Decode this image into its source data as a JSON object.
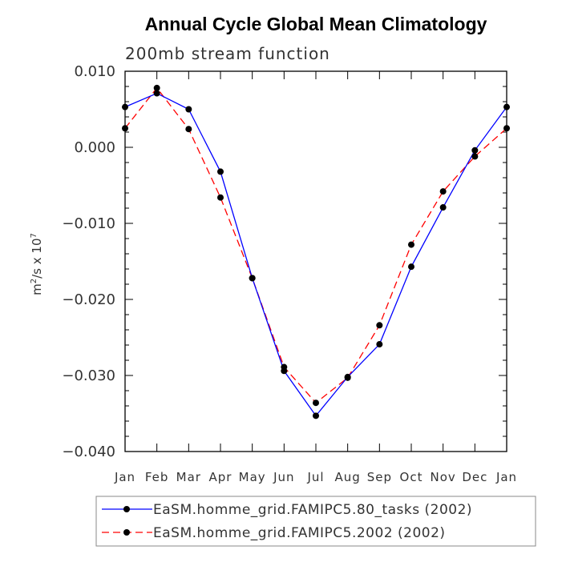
{
  "chart_data": {
    "type": "line",
    "title": "Annual Cycle Global Mean Climatology",
    "subtitle": "200mb stream function",
    "ylabel": "m",
    "ylabel_sup": "2",
    "ylabel_mid": "/s x 10",
    "ylabel_sup2": "7",
    "xlabel": "",
    "ylim": [
      -0.04,
      0.01
    ],
    "yticks": [
      0.01,
      0.0,
      -0.01,
      -0.02,
      -0.03,
      -0.04
    ],
    "ytick_labels": [
      "0.010",
      "0.000",
      "−0.010",
      "−0.020",
      "−0.030",
      "−0.040"
    ],
    "categories": [
      "Jan",
      "Feb",
      "Mar",
      "Apr",
      "May",
      "Jun",
      "Jul",
      "Aug",
      "Sep",
      "Oct",
      "Nov",
      "Dec",
      "Jan"
    ],
    "series": [
      {
        "name": "EaSM.homme_grid.FAMIPC5.80_tasks (2002)",
        "color": "#0000ff",
        "dash": "solid",
        "values": [
          0.0053,
          0.0071,
          0.005,
          -0.0032,
          -0.0172,
          -0.0294,
          -0.0353,
          -0.0302,
          -0.0259,
          -0.0157,
          -0.0079,
          -0.0004,
          0.0053
        ]
      },
      {
        "name": "EaSM.homme_grid.FAMIPC5.2002 (2002)",
        "color": "#ff0000",
        "dash": "dashed",
        "values": [
          0.0025,
          0.0078,
          0.0024,
          -0.0066,
          -0.0172,
          -0.0289,
          -0.0336,
          -0.0303,
          -0.0234,
          -0.0128,
          -0.0058,
          -0.0012,
          0.0025
        ]
      }
    ],
    "legend_position": "bottom"
  }
}
